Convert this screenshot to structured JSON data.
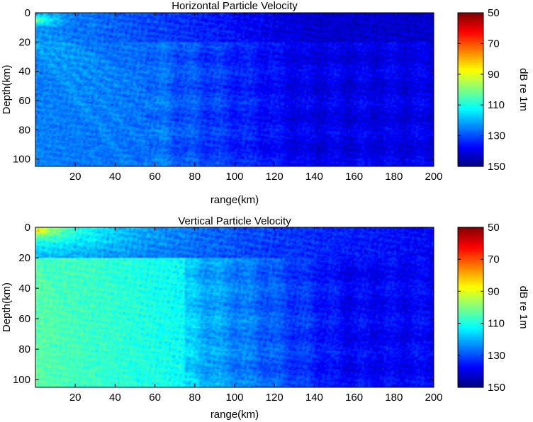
{
  "chart_data": [
    {
      "type": "heatmap",
      "title": "Horizontal Particle Velocity",
      "xlabel": "range(km)",
      "ylabel": "Depth(km)",
      "xlim": [
        0,
        200
      ],
      "ylim": [
        0,
        105
      ],
      "y_reversed": true,
      "x_ticks": [
        20,
        40,
        60,
        80,
        100,
        120,
        140,
        160,
        180,
        200
      ],
      "y_ticks": [
        0,
        20,
        40,
        60,
        80,
        100
      ],
      "colorbar": {
        "label": "dB re 1m",
        "ticks": [
          50,
          70,
          90,
          110,
          130,
          150
        ],
        "range": [
          50,
          150
        ],
        "colormap": "jet-reversed"
      },
      "field": {
        "source_depth_km": 5,
        "layer_interface_km": 20,
        "min_level_db": 92,
        "upper_near_level_db": 120,
        "upper_far_level_db": 140,
        "lower_near_level_db": 126,
        "lower_mid_level_db": 130,
        "lower_far_level_db": 144,
        "beam_level_db": 122,
        "beam_break_range_km": 55
      }
    },
    {
      "type": "heatmap",
      "title": "Vertical Particle Velocity",
      "xlabel": "range(km)",
      "ylabel": "Depth(km)",
      "xlim": [
        0,
        200
      ],
      "ylim": [
        0,
        105
      ],
      "y_reversed": true,
      "x_ticks": [
        20,
        40,
        60,
        80,
        100,
        120,
        140,
        160,
        180,
        200
      ],
      "y_ticks": [
        0,
        20,
        40,
        60,
        80,
        100
      ],
      "colorbar": {
        "label": "dB re 1m",
        "ticks": [
          50,
          70,
          90,
          110,
          130,
          150
        ],
        "range": [
          50,
          150
        ],
        "colormap": "jet-reversed"
      },
      "field": {
        "source_depth_km": 2,
        "layer_interface_km": 20,
        "min_level_db": 75,
        "upper_near_level_db": 118,
        "upper_far_level_db": 140,
        "lower_near_level_db": 105,
        "lower_mid_level_db": 122,
        "lower_far_level_db": 142,
        "beam_level_db": 108,
        "beam_break_range_km": 75
      }
    }
  ]
}
